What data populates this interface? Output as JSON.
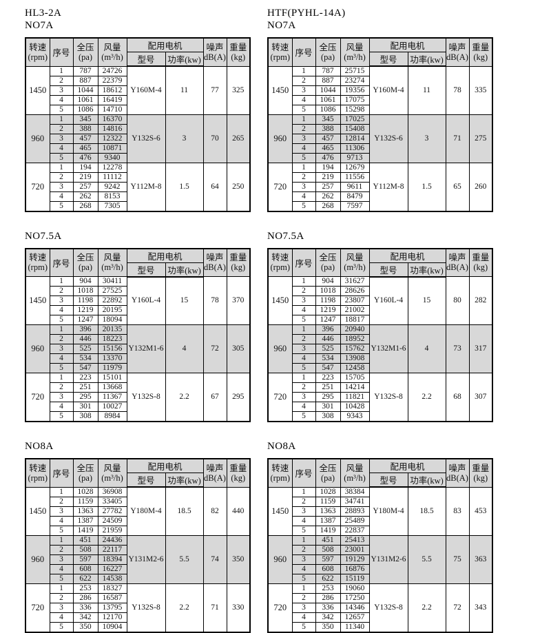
{
  "page": {
    "background": "#ffffff",
    "header_fill": "#d8d8d8",
    "shade_fill": "#d8d8d8",
    "border_color": "#000000"
  },
  "column_headers": {
    "speed": "转速",
    "speed_unit": "(rpm)",
    "seq": "序号",
    "pressure": "全压",
    "pressure_unit": "(pa)",
    "airflow": "风量",
    "airflow_unit": "(m³/h)",
    "motor_group": "配用电机",
    "motor_model": "型号",
    "motor_power": "功率(kw)",
    "noise": "噪声",
    "noise_unit": "dB(A)",
    "weight": "重量",
    "weight_unit": "(kg)"
  },
  "tables": [
    {
      "titles": [
        "HL3-2A",
        "NO7A"
      ],
      "groups": [
        {
          "rpm": "1450",
          "shaded": false,
          "motor_model": "Y160M-4",
          "motor_power": "11",
          "noise": "77",
          "weight": "325",
          "rows": [
            [
              "1",
              "787",
              "24726"
            ],
            [
              "2",
              "887",
              "22379"
            ],
            [
              "3",
              "1044",
              "18612"
            ],
            [
              "4",
              "1061",
              "16419"
            ],
            [
              "5",
              "1086",
              "14710"
            ]
          ]
        },
        {
          "rpm": "960",
          "shaded": true,
          "motor_model": "Y132S-6",
          "motor_power": "3",
          "noise": "70",
          "weight": "265",
          "rows": [
            [
              "1",
              "345",
              "16370"
            ],
            [
              "2",
              "388",
              "14816"
            ],
            [
              "3",
              "457",
              "12322"
            ],
            [
              "4",
              "465",
              "10871"
            ],
            [
              "5",
              "476",
              "9340"
            ]
          ]
        },
        {
          "rpm": "720",
          "shaded": false,
          "motor_model": "Y112M-8",
          "motor_power": "1.5",
          "noise": "64",
          "weight": "250",
          "rows": [
            [
              "1",
              "194",
              "12278"
            ],
            [
              "2",
              "219",
              "11112"
            ],
            [
              "3",
              "257",
              "9242"
            ],
            [
              "4",
              "262",
              "8153"
            ],
            [
              "5",
              "268",
              "7305"
            ]
          ]
        }
      ]
    },
    {
      "titles": [
        "HTF(PYHL-14A)",
        "NO7A"
      ],
      "groups": [
        {
          "rpm": "1450",
          "shaded": false,
          "motor_model": "Y160M-4",
          "motor_power": "11",
          "noise": "78",
          "weight": "335",
          "rows": [
            [
              "1",
              "787",
              "25715"
            ],
            [
              "2",
              "887",
              "23274"
            ],
            [
              "3",
              "1044",
              "19356"
            ],
            [
              "4",
              "1061",
              "17075"
            ],
            [
              "5",
              "1086",
              "15298"
            ]
          ]
        },
        {
          "rpm": "960",
          "shaded": true,
          "motor_model": "Y132S-6",
          "motor_power": "3",
          "noise": "71",
          "weight": "275",
          "rows": [
            [
              "1",
              "345",
              "17025"
            ],
            [
              "2",
              "388",
              "15408"
            ],
            [
              "3",
              "457",
              "12814"
            ],
            [
              "4",
              "465",
              "11306"
            ],
            [
              "5",
              "476",
              "9713"
            ]
          ]
        },
        {
          "rpm": "720",
          "shaded": false,
          "motor_model": "Y112M-8",
          "motor_power": "1.5",
          "noise": "65",
          "weight": "260",
          "rows": [
            [
              "1",
              "194",
              "12679"
            ],
            [
              "2",
              "219",
              "11556"
            ],
            [
              "3",
              "257",
              "9611"
            ],
            [
              "4",
              "262",
              "8479"
            ],
            [
              "5",
              "268",
              "7597"
            ]
          ]
        }
      ]
    },
    {
      "titles": [
        "NO7.5A"
      ],
      "groups": [
        {
          "rpm": "1450",
          "shaded": false,
          "motor_model": "Y160L-4",
          "motor_power": "15",
          "noise": "78",
          "weight": "370",
          "rows": [
            [
              "1",
              "904",
              "30411"
            ],
            [
              "2",
              "1018",
              "27525"
            ],
            [
              "3",
              "1198",
              "22892"
            ],
            [
              "4",
              "1219",
              "20195"
            ],
            [
              "5",
              "1247",
              "18094"
            ]
          ]
        },
        {
          "rpm": "960",
          "shaded": true,
          "motor_model": "Y132M1-6",
          "motor_power": "4",
          "noise": "72",
          "weight": "305",
          "rows": [
            [
              "1",
              "396",
              "20135"
            ],
            [
              "2",
              "446",
              "18223"
            ],
            [
              "3",
              "525",
              "15156"
            ],
            [
              "4",
              "534",
              "13370"
            ],
            [
              "5",
              "547",
              "11979"
            ]
          ]
        },
        {
          "rpm": "720",
          "shaded": false,
          "motor_model": "Y132S-8",
          "motor_power": "2.2",
          "noise": "67",
          "weight": "295",
          "rows": [
            [
              "1",
              "223",
              "15101"
            ],
            [
              "2",
              "251",
              "13668"
            ],
            [
              "3",
              "295",
              "11367"
            ],
            [
              "4",
              "301",
              "10027"
            ],
            [
              "5",
              "308",
              "8984"
            ]
          ]
        }
      ]
    },
    {
      "titles": [
        "NO7.5A"
      ],
      "groups": [
        {
          "rpm": "1450",
          "shaded": false,
          "motor_model": "Y160L-4",
          "motor_power": "15",
          "noise": "80",
          "weight": "282",
          "rows": [
            [
              "1",
              "904",
              "31627"
            ],
            [
              "2",
              "1018",
              "28626"
            ],
            [
              "3",
              "1198",
              "23807"
            ],
            [
              "4",
              "1219",
              "21002"
            ],
            [
              "5",
              "1247",
              "18817"
            ]
          ]
        },
        {
          "rpm": "960",
          "shaded": true,
          "motor_model": "Y132M1-6",
          "motor_power": "4",
          "noise": "73",
          "weight": "317",
          "rows": [
            [
              "1",
              "396",
              "20940"
            ],
            [
              "2",
              "446",
              "18952"
            ],
            [
              "3",
              "525",
              "15762"
            ],
            [
              "4",
              "534",
              "13908"
            ],
            [
              "5",
              "547",
              "12458"
            ]
          ]
        },
        {
          "rpm": "720",
          "shaded": false,
          "motor_model": "Y132S-8",
          "motor_power": "2.2",
          "noise": "68",
          "weight": "307",
          "rows": [
            [
              "1",
              "223",
              "15705"
            ],
            [
              "2",
              "251",
              "14214"
            ],
            [
              "3",
              "295",
              "11821"
            ],
            [
              "4",
              "301",
              "10428"
            ],
            [
              "5",
              "308",
              "9343"
            ]
          ]
        }
      ]
    },
    {
      "titles": [
        "NO8A"
      ],
      "groups": [
        {
          "rpm": "1450",
          "shaded": false,
          "motor_model": "Y180M-4",
          "motor_power": "18.5",
          "noise": "82",
          "weight": "440",
          "rows": [
            [
              "1",
              "1028",
              "36908"
            ],
            [
              "2",
              "1159",
              "33405"
            ],
            [
              "3",
              "1363",
              "27782"
            ],
            [
              "4",
              "1387",
              "24509"
            ],
            [
              "5",
              "1419",
              "21959"
            ]
          ]
        },
        {
          "rpm": "960",
          "shaded": true,
          "motor_model": "Y131M2-6",
          "motor_power": "5.5",
          "noise": "74",
          "weight": "350",
          "rows": [
            [
              "1",
              "451",
              "24436"
            ],
            [
              "2",
              "508",
              "22117"
            ],
            [
              "3",
              "597",
              "18394"
            ],
            [
              "4",
              "608",
              "16227"
            ],
            [
              "5",
              "622",
              "14538"
            ]
          ]
        },
        {
          "rpm": "720",
          "shaded": false,
          "motor_model": "Y132S-8",
          "motor_power": "2.2",
          "noise": "71",
          "weight": "330",
          "rows": [
            [
              "1",
              "253",
              "18327"
            ],
            [
              "2",
              "286",
              "16587"
            ],
            [
              "3",
              "336",
              "13795"
            ],
            [
              "4",
              "342",
              "12170"
            ],
            [
              "5",
              "350",
              "10904"
            ]
          ]
        }
      ]
    },
    {
      "titles": [
        "NO8A"
      ],
      "groups": [
        {
          "rpm": "1450",
          "shaded": false,
          "motor_model": "Y180M-4",
          "motor_power": "18.5",
          "noise": "83",
          "weight": "453",
          "rows": [
            [
              "1",
              "1028",
              "38384"
            ],
            [
              "2",
              "1159",
              "34741"
            ],
            [
              "3",
              "1363",
              "28893"
            ],
            [
              "4",
              "1387",
              "25489"
            ],
            [
              "5",
              "1419",
              "22837"
            ]
          ]
        },
        {
          "rpm": "960",
          "shaded": true,
          "motor_model": "Y131M2-6",
          "motor_power": "5.5",
          "noise": "75",
          "weight": "363",
          "rows": [
            [
              "1",
              "451",
              "25413"
            ],
            [
              "2",
              "508",
              "23001"
            ],
            [
              "3",
              "597",
              "19129"
            ],
            [
              "4",
              "608",
              "16876"
            ],
            [
              "5",
              "622",
              "15119"
            ]
          ]
        },
        {
          "rpm": "720",
          "shaded": false,
          "motor_model": "Y132S-8",
          "motor_power": "2.2",
          "noise": "72",
          "weight": "343",
          "rows": [
            [
              "1",
              "253",
              "19060"
            ],
            [
              "2",
              "286",
              "17250"
            ],
            [
              "3",
              "336",
              "14346"
            ],
            [
              "4",
              "342",
              "12657"
            ],
            [
              "5",
              "350",
              "11340"
            ]
          ]
        }
      ]
    }
  ]
}
